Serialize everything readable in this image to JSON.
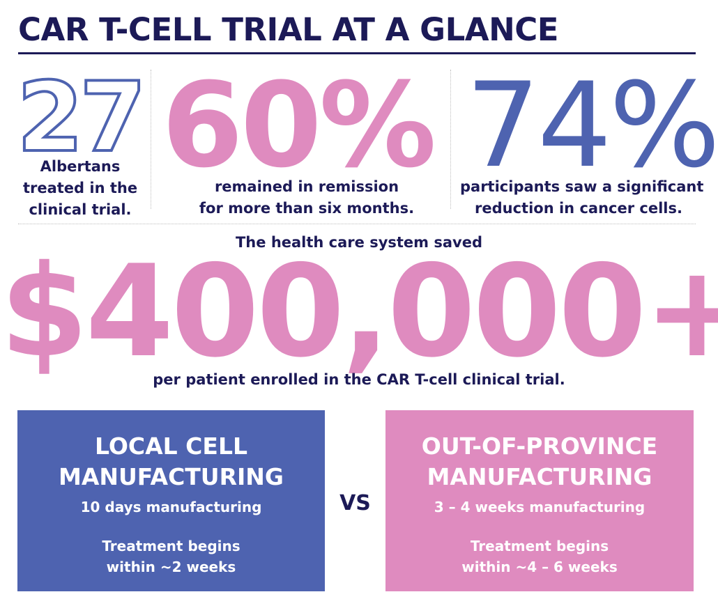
{
  "title": "CAR T-CELL TRIAL AT A GLANCE",
  "colors": {
    "navy": "#1c1a57",
    "blue": "#4e63b0",
    "pink": "#df8bbf"
  },
  "stats": [
    {
      "value": "27",
      "caption_lines": [
        "Albertans",
        "treated in the",
        "clinical trial."
      ]
    },
    {
      "value": "60%",
      "caption_lines": [
        "remained in remission",
        "for more than six months."
      ]
    },
    {
      "value": "74%",
      "caption_lines": [
        "participants saw a significant",
        "reduction in cancer cells."
      ]
    }
  ],
  "savings": {
    "intro": "The health care system saved",
    "amount": "$400,000+",
    "outro": "per patient enrolled in the CAR T-cell clinical trial."
  },
  "comparison": {
    "local": {
      "title_lines": [
        "LOCAL CELL",
        "MANUFACTURING"
      ],
      "manufacturing": "10 days manufacturing",
      "treatment_lines": [
        "Treatment begins",
        "within ~2 weeks"
      ]
    },
    "vs": "VS",
    "out_of_province": {
      "title_lines": [
        "OUT-OF-PROVINCE",
        "MANUFACTURING"
      ],
      "manufacturing": "3 – 4 weeks manufacturing",
      "treatment_lines": [
        "Treatment begins",
        "within ~4 – 6 weeks"
      ]
    }
  }
}
